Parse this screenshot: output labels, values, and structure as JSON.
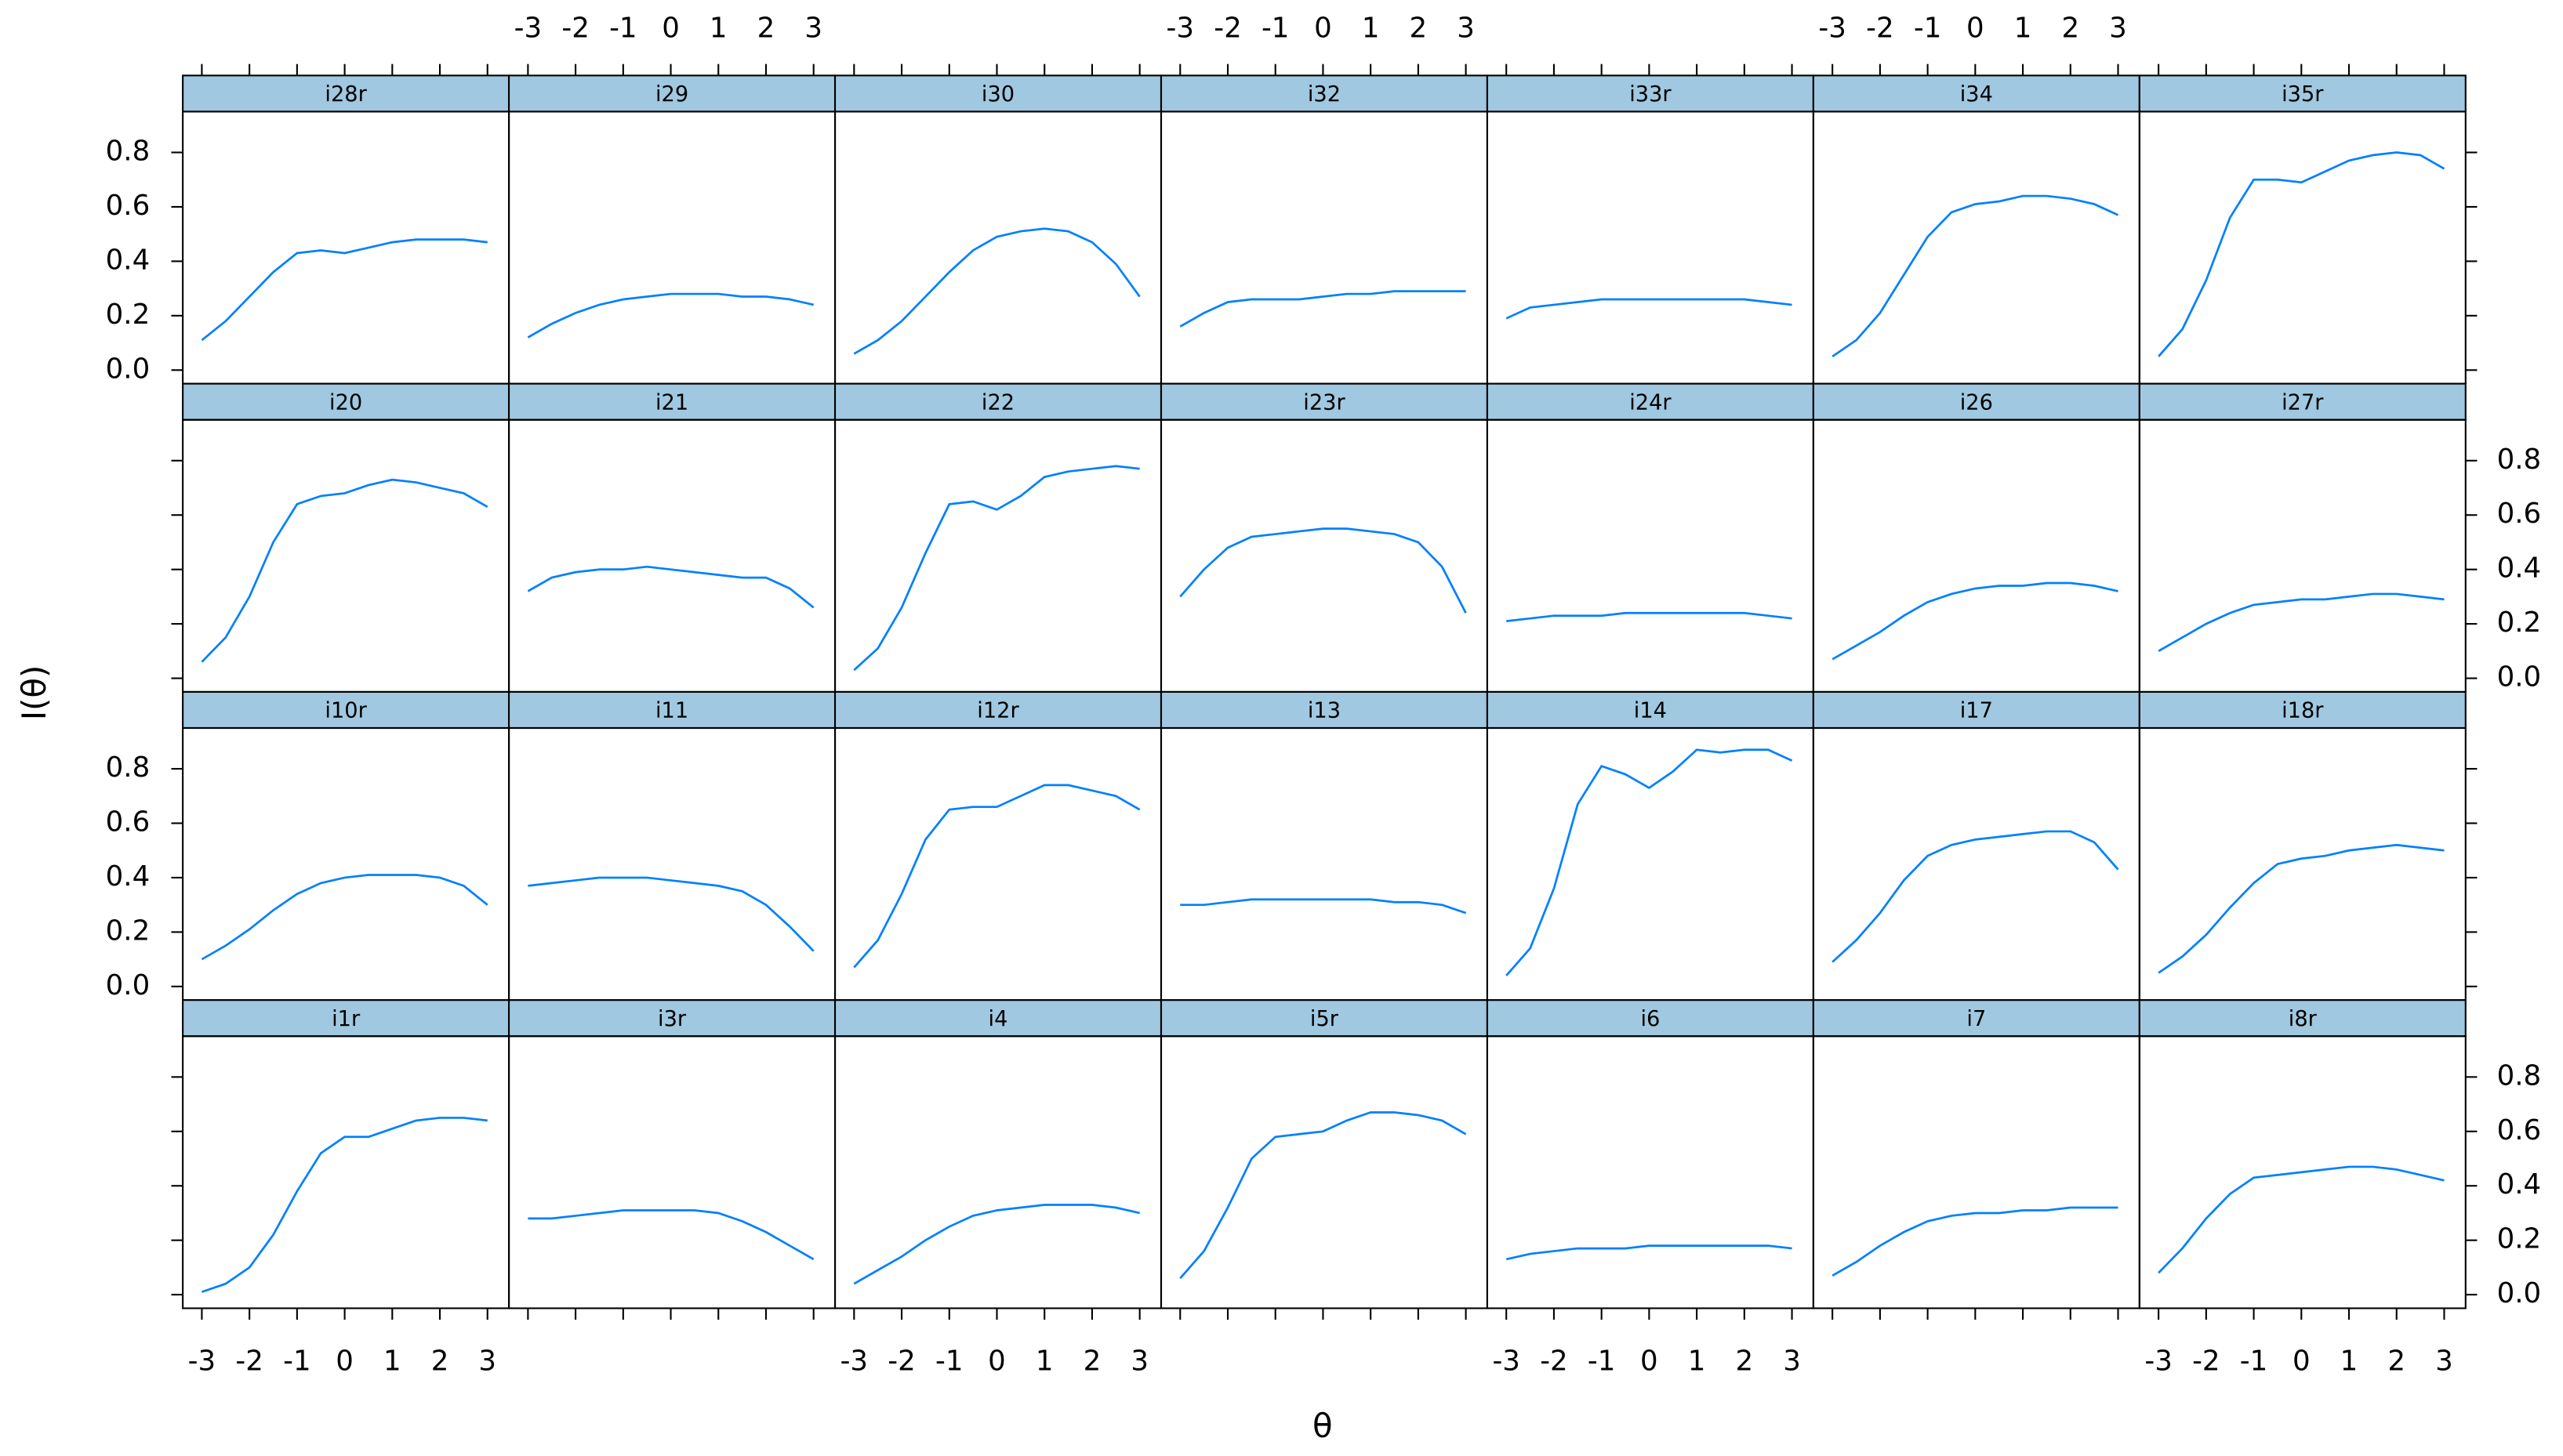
{
  "chart_data": {
    "type": "line",
    "xlabel": "θ",
    "ylabel": "I(θ)",
    "color": "#0080ff",
    "x": [
      -3,
      -2.5,
      -2,
      -1.5,
      -1,
      -0.5,
      0,
      0.5,
      1,
      1.5,
      2,
      2.5,
      3
    ],
    "xlim": [
      -3.4,
      3.45
    ],
    "ylim": [
      -0.05,
      0.95
    ],
    "xticks": [
      -3,
      -2,
      -1,
      0,
      1,
      2,
      3
    ],
    "yticks": [
      {
        "value": 0,
        "label": "0.0"
      },
      0.2,
      0.4,
      0.6,
      0.8
    ],
    "series": [
      {
        "name": "i28r",
        "values": [
          0.11,
          0.18,
          0.27,
          0.36,
          0.43,
          0.44,
          0.43,
          0.45,
          0.47,
          0.48,
          0.48,
          0.48,
          0.47
        ]
      },
      {
        "name": "i29",
        "values": [
          0.12,
          0.17,
          0.21,
          0.24,
          0.26,
          0.27,
          0.28,
          0.28,
          0.28,
          0.27,
          0.27,
          0.26,
          0.24
        ]
      },
      {
        "name": "i30",
        "values": [
          0.06,
          0.11,
          0.18,
          0.27,
          0.36,
          0.44,
          0.49,
          0.51,
          0.52,
          0.51,
          0.47,
          0.39,
          0.27
        ]
      },
      {
        "name": "i32",
        "values": [
          0.16,
          0.21,
          0.25,
          0.26,
          0.26,
          0.26,
          0.27,
          0.28,
          0.28,
          0.29,
          0.29,
          0.29,
          0.29
        ]
      },
      {
        "name": "i33r",
        "values": [
          0.19,
          0.23,
          0.24,
          0.25,
          0.26,
          0.26,
          0.26,
          0.26,
          0.26,
          0.26,
          0.26,
          0.25,
          0.24
        ]
      },
      {
        "name": "i34",
        "values": [
          0.05,
          0.11,
          0.21,
          0.35,
          0.49,
          0.58,
          0.61,
          0.62,
          0.64,
          0.64,
          0.63,
          0.61,
          0.57
        ]
      },
      {
        "name": "i35r",
        "values": [
          0.05,
          0.15,
          0.33,
          0.56,
          0.7,
          0.7,
          0.69,
          0.73,
          0.77,
          0.79,
          0.8,
          0.79,
          0.74
        ]
      },
      {
        "name": "i20",
        "values": [
          0.06,
          0.15,
          0.3,
          0.5,
          0.64,
          0.67,
          0.68,
          0.71,
          0.73,
          0.72,
          0.7,
          0.68,
          0.63
        ]
      },
      {
        "name": "i21",
        "values": [
          0.32,
          0.37,
          0.39,
          0.4,
          0.4,
          0.41,
          0.4,
          0.39,
          0.38,
          0.37,
          0.37,
          0.33,
          0.26
        ]
      },
      {
        "name": "i22",
        "values": [
          0.03,
          0.11,
          0.26,
          0.46,
          0.64,
          0.65,
          0.62,
          0.67,
          0.74,
          0.76,
          0.77,
          0.78,
          0.77
        ]
      },
      {
        "name": "i23r",
        "values": [
          0.3,
          0.4,
          0.48,
          0.52,
          0.53,
          0.54,
          0.55,
          0.55,
          0.54,
          0.53,
          0.5,
          0.41,
          0.24
        ]
      },
      {
        "name": "i24r",
        "values": [
          0.21,
          0.22,
          0.23,
          0.23,
          0.23,
          0.24,
          0.24,
          0.24,
          0.24,
          0.24,
          0.24,
          0.23,
          0.22
        ]
      },
      {
        "name": "i26",
        "values": [
          0.07,
          0.12,
          0.17,
          0.23,
          0.28,
          0.31,
          0.33,
          0.34,
          0.34,
          0.35,
          0.35,
          0.34,
          0.32
        ]
      },
      {
        "name": "i27r",
        "values": [
          0.1,
          0.15,
          0.2,
          0.24,
          0.27,
          0.28,
          0.29,
          0.29,
          0.3,
          0.31,
          0.31,
          0.3,
          0.29
        ]
      },
      {
        "name": "i10r",
        "values": [
          0.1,
          0.15,
          0.21,
          0.28,
          0.34,
          0.38,
          0.4,
          0.41,
          0.41,
          0.41,
          0.4,
          0.37,
          0.3
        ]
      },
      {
        "name": "i11",
        "values": [
          0.37,
          0.38,
          0.39,
          0.4,
          0.4,
          0.4,
          0.39,
          0.38,
          0.37,
          0.35,
          0.3,
          0.22,
          0.13
        ]
      },
      {
        "name": "i12r",
        "values": [
          0.07,
          0.17,
          0.34,
          0.54,
          0.65,
          0.66,
          0.66,
          0.7,
          0.74,
          0.74,
          0.72,
          0.7,
          0.65
        ]
      },
      {
        "name": "i13",
        "values": [
          0.3,
          0.3,
          0.31,
          0.32,
          0.32,
          0.32,
          0.32,
          0.32,
          0.32,
          0.31,
          0.31,
          0.3,
          0.27
        ]
      },
      {
        "name": "i14",
        "values": [
          0.04,
          0.14,
          0.36,
          0.67,
          0.81,
          0.78,
          0.73,
          0.79,
          0.87,
          0.86,
          0.87,
          0.87,
          0.83
        ]
      },
      {
        "name": "i17",
        "values": [
          0.09,
          0.17,
          0.27,
          0.39,
          0.48,
          0.52,
          0.54,
          0.55,
          0.56,
          0.57,
          0.57,
          0.53,
          0.43
        ]
      },
      {
        "name": "i18r",
        "values": [
          0.05,
          0.11,
          0.19,
          0.29,
          0.38,
          0.45,
          0.47,
          0.48,
          0.5,
          0.51,
          0.52,
          0.51,
          0.5
        ]
      },
      {
        "name": "i1r",
        "values": [
          0.01,
          0.04,
          0.1,
          0.22,
          0.38,
          0.52,
          0.58,
          0.58,
          0.61,
          0.64,
          0.65,
          0.65,
          0.64
        ]
      },
      {
        "name": "i3r",
        "values": [
          0.28,
          0.28,
          0.29,
          0.3,
          0.31,
          0.31,
          0.31,
          0.31,
          0.3,
          0.27,
          0.23,
          0.18,
          0.13
        ]
      },
      {
        "name": "i4",
        "values": [
          0.04,
          0.09,
          0.14,
          0.2,
          0.25,
          0.29,
          0.31,
          0.32,
          0.33,
          0.33,
          0.33,
          0.32,
          0.3
        ]
      },
      {
        "name": "i5r",
        "values": [
          0.06,
          0.16,
          0.32,
          0.5,
          0.58,
          0.59,
          0.6,
          0.64,
          0.67,
          0.67,
          0.66,
          0.64,
          0.59
        ]
      },
      {
        "name": "i6",
        "values": [
          0.13,
          0.15,
          0.16,
          0.17,
          0.17,
          0.17,
          0.18,
          0.18,
          0.18,
          0.18,
          0.18,
          0.18,
          0.17
        ]
      },
      {
        "name": "i7",
        "values": [
          0.07,
          0.12,
          0.18,
          0.23,
          0.27,
          0.29,
          0.3,
          0.3,
          0.31,
          0.31,
          0.32,
          0.32,
          0.32
        ]
      },
      {
        "name": "i8r",
        "values": [
          0.08,
          0.17,
          0.28,
          0.37,
          0.43,
          0.44,
          0.45,
          0.46,
          0.47,
          0.47,
          0.46,
          0.44,
          0.42
        ]
      }
    ]
  }
}
